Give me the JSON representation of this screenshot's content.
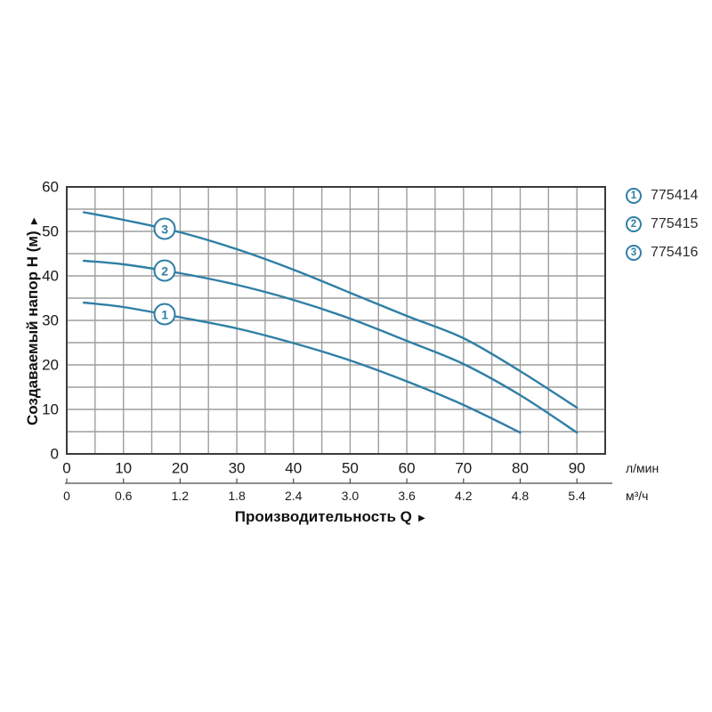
{
  "ui": {
    "axis_arrow": "►",
    "colors": {
      "curve": "#2f7fa5",
      "grid": "#9e9e9e",
      "frame": "#3b3b3b",
      "axis_line": "#4a4a4a",
      "text": "#1a1a1a"
    }
  },
  "legend": {
    "items": [
      {
        "number": "1",
        "label": "775414"
      },
      {
        "number": "2",
        "label": "775415"
      },
      {
        "number": "3",
        "label": "775416"
      }
    ]
  },
  "chart_data": {
    "type": "line",
    "title": "",
    "xlabel": "Производительность Q",
    "ylabel": "Создаваемый напор H (м)",
    "x_primary": {
      "unit": "л/мин",
      "ticks": [
        0,
        10,
        20,
        30,
        40,
        50,
        60,
        70,
        80,
        90
      ],
      "range": [
        0,
        95
      ]
    },
    "x_secondary": {
      "unit": "м³/ч",
      "tick_labels": [
        "0",
        "0.6",
        "1.2",
        "1.8",
        "2.4",
        "3.0",
        "3.6",
        "4.2",
        "4.8",
        "5.4"
      ],
      "tick_positions_lmin": [
        0,
        10,
        20,
        30,
        40,
        50,
        60,
        70,
        80,
        90
      ]
    },
    "y_axis": {
      "ticks": [
        0,
        10,
        20,
        30,
        40,
        50,
        60
      ],
      "range": [
        0,
        60
      ]
    },
    "grid": {
      "on": true,
      "step_q": 5,
      "step_h": 5
    },
    "legend_position": "top-right",
    "series": [
      {
        "name": "775414",
        "marker": "1",
        "marker_q": 17.3,
        "points_q_lmin": [
          3,
          10,
          20,
          30,
          40,
          50,
          60,
          70,
          80
        ],
        "points_h_m": [
          34,
          33,
          30.7,
          28.2,
          24.9,
          21,
          16.3,
          11,
          4.8
        ]
      },
      {
        "name": "775415",
        "marker": "2",
        "marker_q": 17.3,
        "points_q_lmin": [
          3,
          10,
          20,
          30,
          40,
          50,
          60,
          70,
          80,
          90
        ],
        "points_h_m": [
          43.4,
          42.6,
          40.6,
          38,
          34.6,
          30.4,
          25.4,
          20.2,
          13.2,
          4.8
        ]
      },
      {
        "name": "775416",
        "marker": "3",
        "marker_q": 17.3,
        "points_q_lmin": [
          3,
          10,
          20,
          30,
          40,
          50,
          60,
          70,
          80,
          90
        ],
        "points_h_m": [
          54.3,
          52.6,
          49.8,
          46,
          41.4,
          36.2,
          31,
          26,
          18.6,
          10.4
        ]
      }
    ]
  }
}
